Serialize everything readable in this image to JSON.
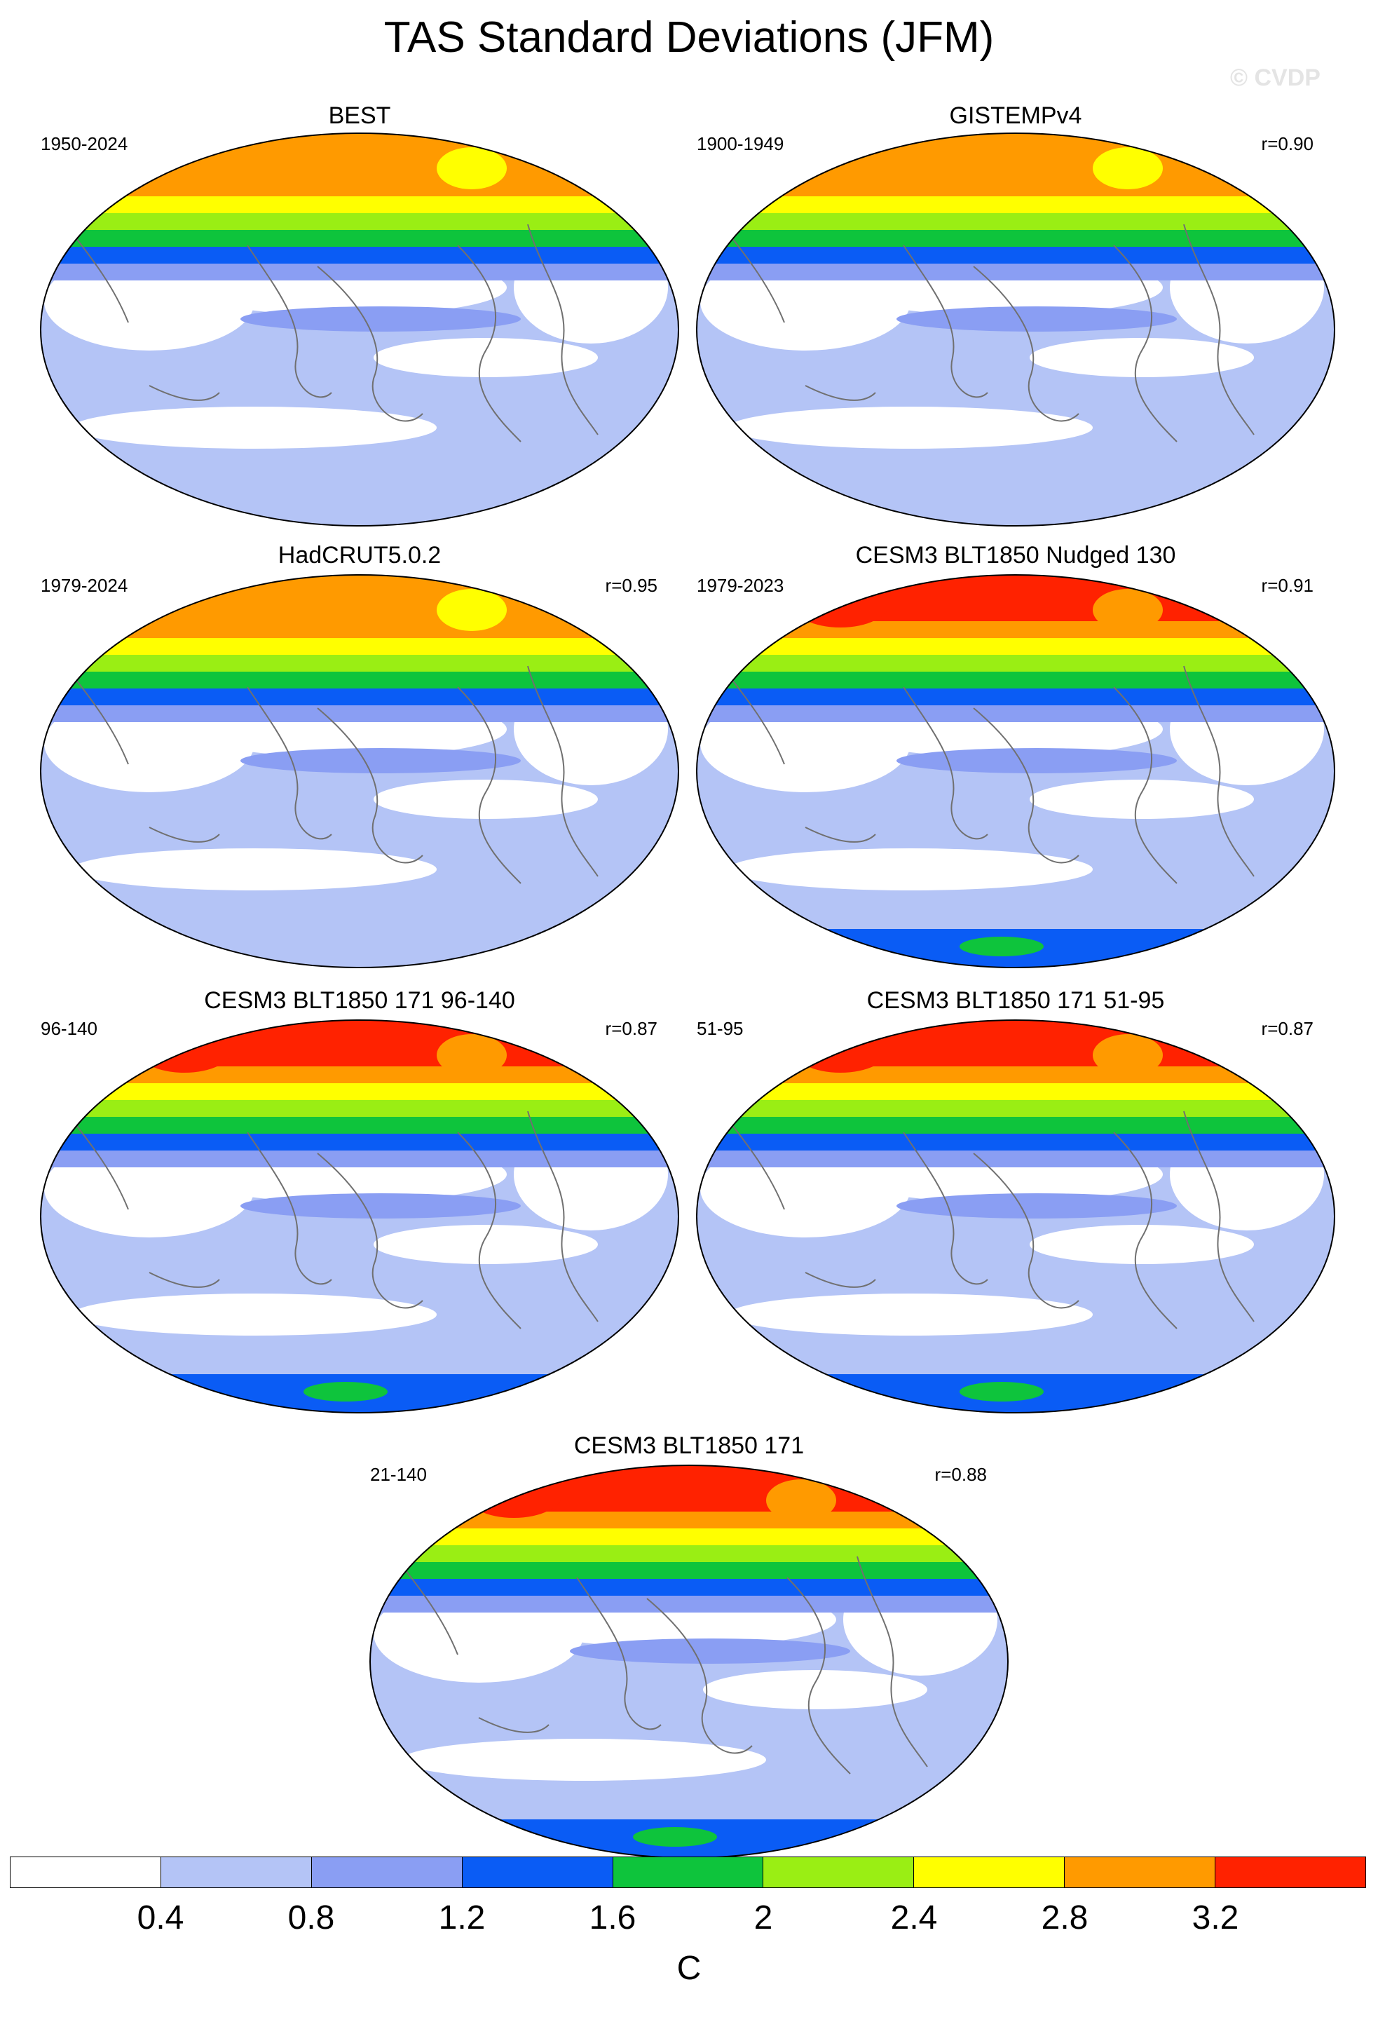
{
  "title": "TAS Standard Deviations (JFM)",
  "watermark": "© CVDP",
  "colors": {
    "levels": [
      "#ffffff",
      "#b4c4f6",
      "#8a9ef3",
      "#0a5cf5",
      "#0ec43c",
      "#9aee14",
      "#ffff00",
      "#ff9a00",
      "#ff2200"
    ],
    "coast": "#707070",
    "outline": "#000000"
  },
  "panels": [
    {
      "title": "BEST",
      "period": "1950-2024",
      "r": ""
    },
    {
      "title": "GISTEMPv4",
      "period": "1900-1949",
      "r": "r=0.90"
    },
    {
      "title": "HadCRUT5.0.2",
      "period": "1979-2024",
      "r": "r=0.95"
    },
    {
      "title": "CESM3 BLT1850 Nudged 130",
      "period": "1979-2023",
      "r": "r=0.91"
    },
    {
      "title": "CESM3 BLT1850 171 96-140",
      "period": "96-140",
      "r": "r=0.87"
    },
    {
      "title": "CESM3 BLT1850 171 51-95",
      "period": "51-95",
      "r": "r=0.87"
    },
    {
      "title": "CESM3 BLT1850 171",
      "period": "21-140",
      "r": "r=0.88"
    }
  ],
  "colorbar": {
    "ticks": [
      "0.4",
      "0.8",
      "1.2",
      "1.6",
      "2",
      "2.4",
      "2.8",
      "3.2"
    ],
    "units": "C"
  }
}
